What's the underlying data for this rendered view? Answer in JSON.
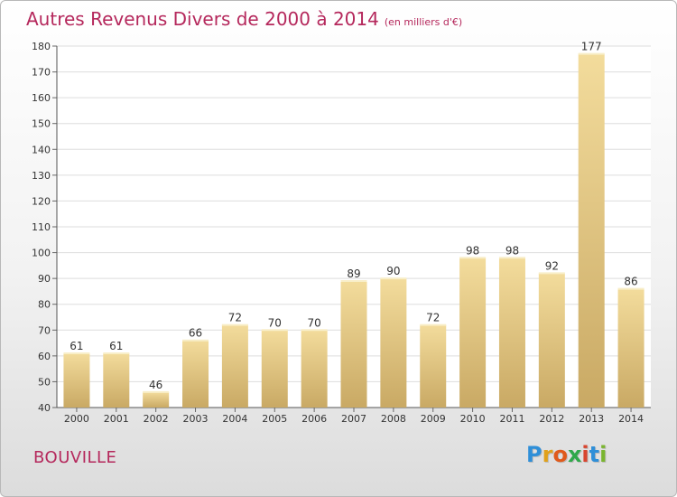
{
  "chart_data": {
    "type": "bar",
    "title": "Autres Revenus Divers de 2000 à 2014",
    "subtitle": "(en milliers d'€)",
    "categories": [
      "2000",
      "2001",
      "2002",
      "2003",
      "2004",
      "2005",
      "2006",
      "2007",
      "2008",
      "2009",
      "2010",
      "2011",
      "2012",
      "2013",
      "2014"
    ],
    "values": [
      61,
      61,
      46,
      66,
      72,
      70,
      70,
      89,
      90,
      72,
      98,
      98,
      92,
      177,
      86
    ],
    "ylim": [
      40,
      180
    ],
    "yticks": [
      40,
      50,
      60,
      70,
      80,
      90,
      100,
      110,
      120,
      130,
      140,
      150,
      160,
      170,
      180
    ],
    "grid": true,
    "bar_color": "#e6c882"
  },
  "footer": {
    "place": "BOUVILLE",
    "logo": "Proxiti"
  },
  "colors": {
    "title": "#b5285c",
    "logo_letters": [
      "#2f8fd8",
      "#e0a11b",
      "#e05a1b",
      "#2fa84a",
      "#d8452f",
      "#2f8fd8",
      "#7ab52f"
    ]
  }
}
